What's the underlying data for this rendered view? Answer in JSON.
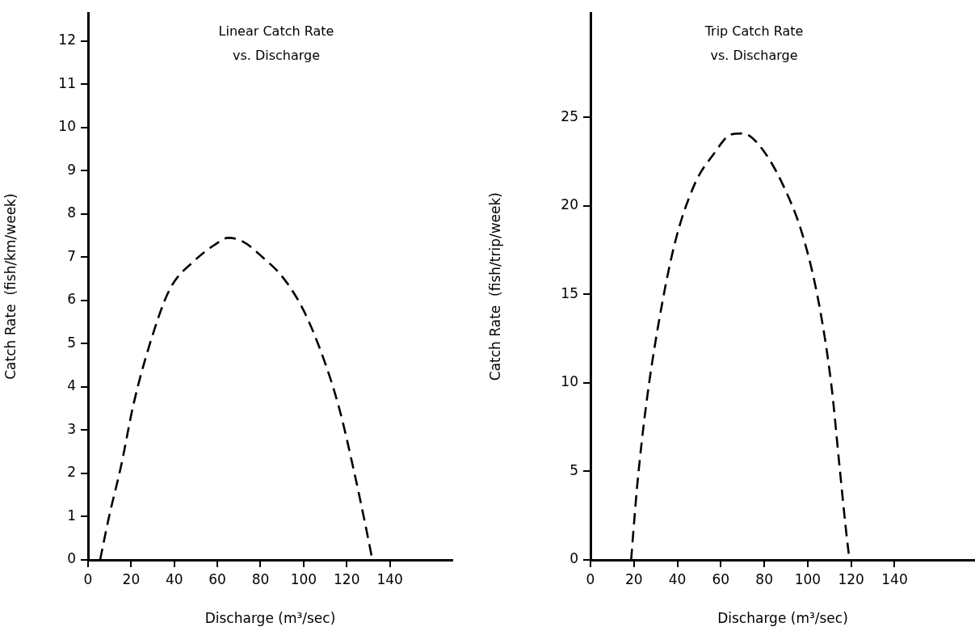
{
  "chart_data": [
    {
      "type": "line",
      "title": "Linear Catch Rate\nvs. Discharge",
      "xlabel": "Discharge (m³/sec)",
      "ylabel": "Catch Rate  (fish/km/week)",
      "line_style": "dashed",
      "marker": "none",
      "grid": false,
      "legend": false,
      "xlim": [
        0,
        169
      ],
      "ylim": [
        0,
        12.65
      ],
      "xticks": [
        0,
        20,
        40,
        60,
        80,
        100,
        120,
        140
      ],
      "yticks": [
        0,
        1,
        2,
        3,
        4,
        5,
        6,
        7,
        8,
        9,
        10,
        11,
        12
      ],
      "series": [
        {
          "color": "#000000",
          "x": [
            5.6,
            9.7,
            15.4,
            21,
            28.5,
            37.9,
            49.1,
            58.5,
            65,
            71.6,
            81,
            90.3,
            99.7,
            109,
            116.6,
            124,
            128.7,
            131.9
          ],
          "values": [
            0,
            0.99,
            2.19,
            3.58,
            4.97,
            6.26,
            6.91,
            7.28,
            7.45,
            7.37,
            7.0,
            6.54,
            5.8,
            4.69,
            3.49,
            1.91,
            0.8,
            0
          ]
        }
      ]
    },
    {
      "type": "line",
      "title": "Trip Catch Rate\nvs. Discharge",
      "xlabel": "Discharge (m³/sec)",
      "ylabel": "Catch Rate  (fish/trip/week)",
      "line_style": "dashed",
      "marker": "none",
      "grid": false,
      "legend": false,
      "xlim": [
        0,
        177
      ],
      "ylim": [
        0,
        30.9
      ],
      "xticks": [
        0,
        20,
        40,
        60,
        80,
        100,
        120,
        140
      ],
      "yticks": [
        0,
        5,
        10,
        15,
        20,
        25
      ],
      "series": [
        {
          "color": "#000000",
          "x": [
            18.7,
            21.5,
            25.6,
            31.2,
            38.6,
            47.8,
            57.1,
            64.5,
            70.1,
            77.5,
            88.6,
            97.9,
            105.3,
            110.9,
            114.6,
            117.4,
            119.2
          ],
          "values": [
            0,
            4.19,
            8.73,
            13.26,
            17.79,
            21.19,
            23.0,
            24.03,
            24.1,
            23.46,
            21.19,
            18.25,
            14.39,
            9.86,
            5.33,
            1.93,
            0
          ]
        }
      ]
    }
  ]
}
